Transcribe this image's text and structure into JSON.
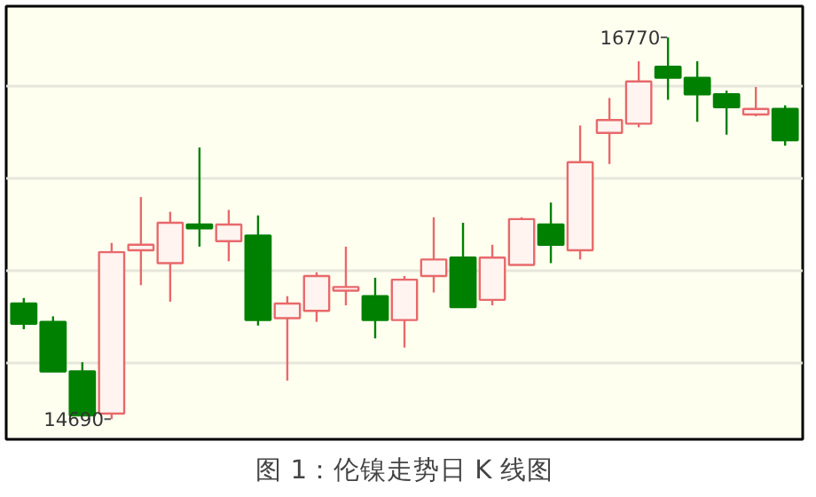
{
  "chart_data": {
    "type": "candlestick",
    "title": "图 1：伦镍走势日 K 线图",
    "categories": [
      null,
      null,
      null,
      null,
      null,
      null,
      null,
      null,
      null,
      null,
      null,
      null,
      null,
      null,
      null,
      null,
      null,
      null,
      null,
      null,
      null,
      null,
      null,
      null,
      null,
      null,
      null
    ],
    "ohlc": [
      [
        15320,
        15350,
        15180,
        15210
      ],
      [
        15220,
        15250,
        14950,
        14950
      ],
      [
        14950,
        15000,
        14710,
        14710
      ],
      [
        14720,
        15650,
        14690,
        15600
      ],
      [
        15610,
        15900,
        15420,
        15640
      ],
      [
        15540,
        15820,
        15330,
        15760
      ],
      [
        15750,
        16170,
        15630,
        15730
      ],
      [
        15660,
        15830,
        15550,
        15750
      ],
      [
        15690,
        15800,
        15200,
        15230
      ],
      [
        15240,
        15360,
        14900,
        15320
      ],
      [
        15280,
        15490,
        15220,
        15470
      ],
      [
        15390,
        15630,
        15310,
        15410
      ],
      [
        15360,
        15460,
        15130,
        15230
      ],
      [
        15230,
        15470,
        15080,
        15450
      ],
      [
        15470,
        15790,
        15380,
        15560
      ],
      [
        15570,
        15760,
        15300,
        15300
      ],
      [
        15340,
        15640,
        15310,
        15570
      ],
      [
        15530,
        15790,
        15530,
        15780
      ],
      [
        15750,
        15870,
        15540,
        15640
      ],
      [
        15610,
        16290,
        15560,
        16090
      ],
      [
        16250,
        16440,
        16080,
        16320
      ],
      [
        16300,
        16640,
        16280,
        16530
      ],
      [
        16610,
        16770,
        16430,
        16550
      ],
      [
        16550,
        16640,
        16310,
        16460
      ],
      [
        16460,
        16480,
        16240,
        16390
      ],
      [
        16350,
        16500,
        16340,
        16380
      ],
      [
        16380,
        16400,
        16180,
        16210
      ]
    ],
    "colors": [
      "#008000",
      "#008000",
      "#008000",
      "#e8696b",
      "#e8696b",
      "#e8696b",
      "#008000",
      "#e8696b",
      "#008000",
      "#e8696b",
      "#e8696b",
      "#e8696b",
      "#008000",
      "#e8696b",
      "#e8696b",
      "#008000",
      "#e8696b",
      "#e8696b",
      "#008000",
      "#e8696b",
      "#e8696b",
      "#e8696b",
      "#008000",
      "#008000",
      "#008000",
      "#e8696b",
      "#008000"
    ],
    "ylim": [
      14580,
      16940
    ],
    "yticks": [
      {
        "value": 15000,
        "label": null
      },
      {
        "value": 15500,
        "label": null
      },
      {
        "value": 16000,
        "label": null
      },
      {
        "value": 16500,
        "label": null
      }
    ],
    "grid": "y",
    "tick_labels": false,
    "annotations": [
      "16770",
      {
        "text": "14690",
        "y": 14690
      }
    ]
  }
}
